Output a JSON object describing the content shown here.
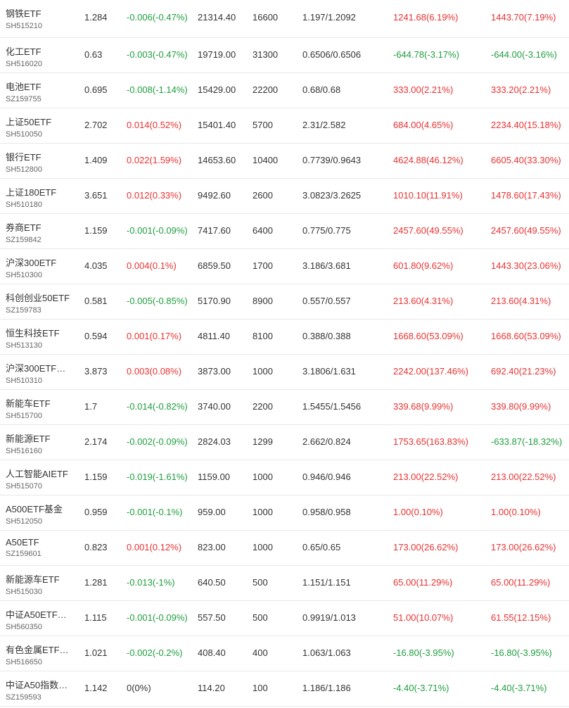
{
  "colors": {
    "up": "#e93030",
    "down": "#1e9e3e",
    "text": "#333333",
    "subtext": "#666666",
    "divider": "#e8e8e8"
  },
  "rows": [
    {
      "name": "钢铁ETF",
      "code": "SH515210",
      "price": "1.284",
      "change": "-0.006(-0.47%)",
      "change_dir": "down",
      "market_value": "21314.40",
      "quantity": "16600",
      "cost": "1.197/1.2092",
      "day_pl": "1241.68(6.19%)",
      "day_pl_dir": "up",
      "total_pl": "1443.70(7.19%)",
      "total_pl_dir": "up"
    },
    {
      "name": "化工ETF",
      "code": "SH516020",
      "price": "0.63",
      "change": "-0.003(-0.47%)",
      "change_dir": "down",
      "market_value": "19719.00",
      "quantity": "31300",
      "cost": "0.6506/0.6506",
      "day_pl": "-644.78(-3.17%)",
      "day_pl_dir": "down",
      "total_pl": "-644.00(-3.16%)",
      "total_pl_dir": "down"
    },
    {
      "name": "电池ETF",
      "code": "SZ159755",
      "price": "0.695",
      "change": "-0.008(-1.14%)",
      "change_dir": "down",
      "market_value": "15429.00",
      "quantity": "22200",
      "cost": "0.68/0.68",
      "day_pl": "333.00(2.21%)",
      "day_pl_dir": "up",
      "total_pl": "333.20(2.21%)",
      "total_pl_dir": "up"
    },
    {
      "name": "上证50ETF",
      "code": "SH510050",
      "price": "2.702",
      "change": "0.014(0.52%)",
      "change_dir": "up",
      "market_value": "15401.40",
      "quantity": "5700",
      "cost": "2.31/2.582",
      "day_pl": "684.00(4.65%)",
      "day_pl_dir": "up",
      "total_pl": "2234.40(15.18%)",
      "total_pl_dir": "up"
    },
    {
      "name": "银行ETF",
      "code": "SH512800",
      "price": "1.409",
      "change": "0.022(1.59%)",
      "change_dir": "up",
      "market_value": "14653.60",
      "quantity": "10400",
      "cost": "0.7739/0.9643",
      "day_pl": "4624.88(46.12%)",
      "day_pl_dir": "up",
      "total_pl": "6605.40(33.30%)",
      "total_pl_dir": "up"
    },
    {
      "name": "上证180ETF",
      "code": "SH510180",
      "price": "3.651",
      "change": "0.012(0.33%)",
      "change_dir": "up",
      "market_value": "9492.60",
      "quantity": "2600",
      "cost": "3.0823/3.2625",
      "day_pl": "1010.10(11.91%)",
      "day_pl_dir": "up",
      "total_pl": "1478.60(17.43%)",
      "total_pl_dir": "up"
    },
    {
      "name": "券商ETF",
      "code": "SZ159842",
      "price": "1.159",
      "change": "-0.001(-0.09%)",
      "change_dir": "down",
      "market_value": "7417.60",
      "quantity": "6400",
      "cost": "0.775/0.775",
      "day_pl": "2457.60(49.55%)",
      "day_pl_dir": "up",
      "total_pl": "2457.60(49.55%)",
      "total_pl_dir": "up"
    },
    {
      "name": "沪深300ETF",
      "code": "SH510300",
      "price": "4.035",
      "change": "0.004(0.1%)",
      "change_dir": "up",
      "market_value": "6859.50",
      "quantity": "1700",
      "cost": "3.186/3.681",
      "day_pl": "601.80(9.62%)",
      "day_pl_dir": "up",
      "total_pl": "1443.30(23.06%)",
      "total_pl_dir": "up"
    },
    {
      "name": "科创创业50ETF",
      "code": "SZ159783",
      "price": "0.581",
      "change": "-0.005(-0.85%)",
      "change_dir": "down",
      "market_value": "5170.90",
      "quantity": "8900",
      "cost": "0.557/0.557",
      "day_pl": "213.60(4.31%)",
      "day_pl_dir": "up",
      "total_pl": "213.60(4.31%)",
      "total_pl_dir": "up"
    },
    {
      "name": "恒生科技ETF",
      "code": "SH513130",
      "price": "0.594",
      "change": "0.001(0.17%)",
      "change_dir": "up",
      "market_value": "4811.40",
      "quantity": "8100",
      "cost": "0.388/0.388",
      "day_pl": "1668.60(53.09%)",
      "day_pl_dir": "up",
      "total_pl": "1668.60(53.09%)",
      "total_pl_dir": "up"
    },
    {
      "name": "沪深300ETF…",
      "code": "SH510310",
      "price": "3.873",
      "change": "0.003(0.08%)",
      "change_dir": "up",
      "market_value": "3873.00",
      "quantity": "1000",
      "cost": "3.1806/1.631",
      "day_pl": "2242.00(137.46%)",
      "day_pl_dir": "up",
      "total_pl": "692.40(21.23%)",
      "total_pl_dir": "up"
    },
    {
      "name": "新能车ETF",
      "code": "SH515700",
      "price": "1.7",
      "change": "-0.014(-0.82%)",
      "change_dir": "down",
      "market_value": "3740.00",
      "quantity": "2200",
      "cost": "1.5455/1.5456",
      "day_pl": "339.68(9.99%)",
      "day_pl_dir": "up",
      "total_pl": "339.80(9.99%)",
      "total_pl_dir": "up"
    },
    {
      "name": "新能源ETF",
      "code": "SH516160",
      "price": "2.174",
      "change": "-0.002(-0.09%)",
      "change_dir": "down",
      "market_value": "2824.03",
      "quantity": "1299",
      "cost": "2.662/0.824",
      "day_pl": "1753.65(163.83%)",
      "day_pl_dir": "up",
      "total_pl": "-633.87(-18.32%)",
      "total_pl_dir": "down"
    },
    {
      "name": "人工智能AIETF",
      "code": "SH515070",
      "price": "1.159",
      "change": "-0.019(-1.61%)",
      "change_dir": "down",
      "market_value": "1159.00",
      "quantity": "1000",
      "cost": "0.946/0.946",
      "day_pl": "213.00(22.52%)",
      "day_pl_dir": "up",
      "total_pl": "213.00(22.52%)",
      "total_pl_dir": "up"
    },
    {
      "name": "A500ETF基金",
      "code": "SH512050",
      "price": "0.959",
      "change": "-0.001(-0.1%)",
      "change_dir": "down",
      "market_value": "959.00",
      "quantity": "1000",
      "cost": "0.958/0.958",
      "day_pl": "1.00(0.10%)",
      "day_pl_dir": "up",
      "total_pl": "1.00(0.10%)",
      "total_pl_dir": "up"
    },
    {
      "name": "A50ETF",
      "code": "SZ159601",
      "price": "0.823",
      "change": "0.001(0.12%)",
      "change_dir": "up",
      "market_value": "823.00",
      "quantity": "1000",
      "cost": "0.65/0.65",
      "day_pl": "173.00(26.62%)",
      "day_pl_dir": "up",
      "total_pl": "173.00(26.62%)",
      "total_pl_dir": "up"
    },
    {
      "name": "新能源车ETF",
      "code": "SH515030",
      "price": "1.281",
      "change": "-0.013(-1%)",
      "change_dir": "down",
      "market_value": "640.50",
      "quantity": "500",
      "cost": "1.151/1.151",
      "day_pl": "65.00(11.29%)",
      "day_pl_dir": "up",
      "total_pl": "65.00(11.29%)",
      "total_pl_dir": "up"
    },
    {
      "name": "中证A50ETF…",
      "code": "SH560350",
      "price": "1.115",
      "change": "-0.001(-0.09%)",
      "change_dir": "down",
      "market_value": "557.50",
      "quantity": "500",
      "cost": "0.9919/1.013",
      "day_pl": "51.00(10.07%)",
      "day_pl_dir": "up",
      "total_pl": "61.55(12.15%)",
      "total_pl_dir": "up"
    },
    {
      "name": "有色金属ETF…",
      "code": "SH516650",
      "price": "1.021",
      "change": "-0.002(-0.2%)",
      "change_dir": "down",
      "market_value": "408.40",
      "quantity": "400",
      "cost": "1.063/1.063",
      "day_pl": "-16.80(-3.95%)",
      "day_pl_dir": "down",
      "total_pl": "-16.80(-3.95%)",
      "total_pl_dir": "down"
    },
    {
      "name": "中证A50指数…",
      "code": "SZ159593",
      "price": "1.142",
      "change": "0(0%)",
      "change_dir": "flat",
      "market_value": "114.20",
      "quantity": "100",
      "cost": "1.186/1.186",
      "day_pl": "-4.40(-3.71%)",
      "day_pl_dir": "down",
      "total_pl": "-4.40(-3.71%)",
      "total_pl_dir": "down"
    }
  ]
}
